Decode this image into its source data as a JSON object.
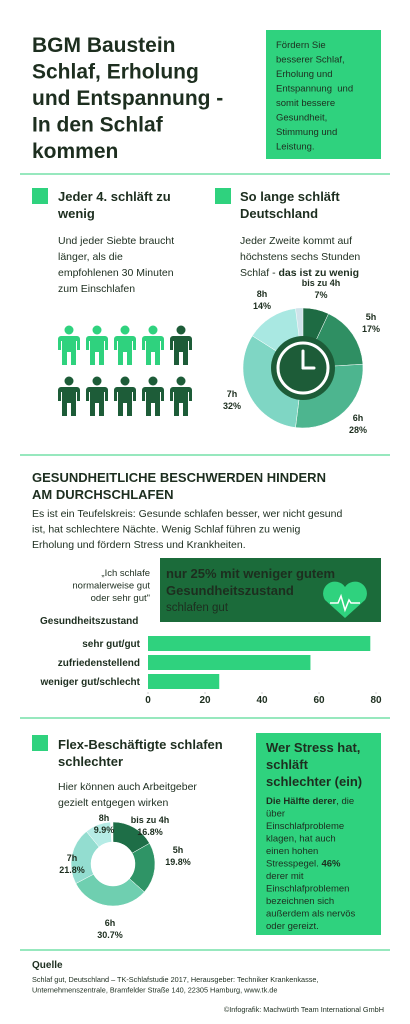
{
  "header": {
    "title_lines": [
      "BGM Baustein",
      "Schlaf, Erholung",
      "und Entspannung -",
      "In den Schlaf",
      "kommen"
    ],
    "intro_lines": [
      "Fördern Sie",
      "besserer Schlaf,",
      "Erholung und",
      "Entspannung  und",
      "somit bessere",
      "Gesundheit,",
      "Stimmung und",
      "Leistung."
    ]
  },
  "too_little": {
    "heading_lines": [
      "Jeder 4. schläft zu",
      "wenig"
    ],
    "text_lines": [
      "Und jeder Siebte braucht",
      "länger, als die",
      "empfohlenen 30 Minuten",
      "zum Einschlafen"
    ]
  },
  "how_long": {
    "heading_lines": [
      "So lange schläft",
      "Deutschland"
    ],
    "text_lines": [
      "Jeder Zweite kommt auf",
      "höchstens sechs Stunden",
      [
        {
          "text": "Schlaf - ",
          "bold": false
        },
        {
          "text": "das ist zu wenig",
          "bold": true
        }
      ]
    ]
  },
  "health": {
    "heading_lines": [
      "GESUNDHEITLICHE BESCHWERDEN HINDERN",
      "AM DURCHSCHLAFEN"
    ],
    "text_lines": [
      "Es ist ein Teufelskreis: Gesunde schlafen besser, wer nicht gesund",
      "ist, hat schlechtere Nächte. Wenig Schlaf führen zu wenig",
      "Erholung und fördern Stress und Krankheiten."
    ],
    "quote_lines": [
      "„Ich schlafe",
      "normalerweise gut",
      "oder sehr gut\""
    ],
    "highlight_lines": [
      "nur 25% mit weniger gutem",
      "Gesundheitszustand"
    ],
    "highlight_sub": "schlafen gut"
  },
  "flex": {
    "heading_lines": [
      "Flex-Beschäftigte schlafen",
      "schlechter"
    ],
    "text_lines": [
      "Hier können auch Arbeitgeber",
      "gezielt entgegen wirken"
    ]
  },
  "stress": {
    "heading_lines": [
      "Wer Stress hat,",
      "schläft",
      "schlechter (ein)"
    ],
    "text_lines": [
      [
        {
          "text": "Die Hälfte derer",
          "bold": true
        },
        {
          "text": ", die",
          "bold": false
        }
      ],
      "über",
      "Einschlafprobleme",
      "klagen, hat auch",
      "einen hohen",
      [
        {
          "text": "Stresspegel. ",
          "bold": false
        },
        {
          "text": "46%",
          "bold": true
        }
      ],
      "derer mit",
      "Einschlafproblemen",
      "bezeichnen sich",
      "außerdem als nervös",
      "oder gereizt."
    ]
  },
  "footer": {
    "source_title": "Quelle",
    "source_lines": [
      "Schlaf gut, Deutschland – TK-Schlafstudie 2017, Herausgeber: Techniker Krankenkasse,",
      "Unternehmenszentrale, Bramfelder Straße 140, 22305 Hamburg, www.tk.de"
    ],
    "credit": "©Infografik: Machwürth Team International GmbH"
  },
  "chart_data": [
    {
      "type": "pie",
      "categories": [
        "bis zu 4h",
        "5h",
        "6h",
        "7h",
        "8h"
      ],
      "values": [
        7,
        17,
        28,
        32,
        14
      ],
      "value_labels": [
        "7%",
        "17%",
        "28%",
        "32%",
        "14%"
      ],
      "colors": [
        "#1e6b43",
        "#2f8f63",
        "#4db58f",
        "#7fd6c4",
        "#a9e8e2"
      ]
    },
    {
      "type": "bar",
      "orientation": "horizontal",
      "ylabel": "Gesundheitszustand",
      "categories": [
        "sehr gut/gut",
        "zufriedenstellend",
        "weniger gut/schlecht"
      ],
      "values": [
        78,
        57,
        25
      ],
      "color": "#2fd27e",
      "xlim": [
        0,
        80
      ],
      "xticks": [
        0,
        20,
        40,
        60,
        80
      ]
    },
    {
      "type": "donut",
      "categories": [
        "bis zu 4h",
        "5h",
        "6h",
        "7h",
        "8h"
      ],
      "values": [
        16.8,
        19.8,
        30.7,
        21.8,
        9.9
      ],
      "value_labels": [
        "16.8%",
        "19.8%",
        "30.7%",
        "21.8%",
        "9.9%"
      ],
      "colors": [
        "#1e6e47",
        "#2f9466",
        "#6fcfb0",
        "#93ddd0",
        "#b6ece6"
      ]
    }
  ]
}
